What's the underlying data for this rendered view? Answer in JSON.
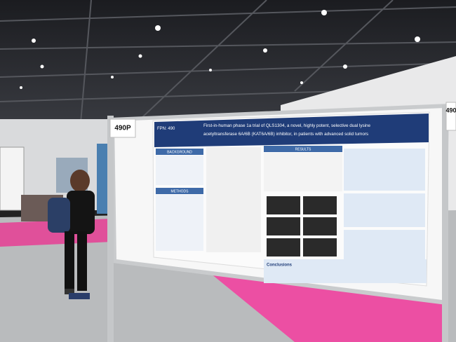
{
  "poster": {
    "board_number": "490P",
    "fpn": "FPN: 490",
    "title_line1": "First-in-human phase 1a trial of QLS1304, a novel, highly potent, selective dual lysine",
    "title_line2": "acetyltransferase 6A/6B (KAT6A/6B) inhibitor, in patients with advanced solid tumors",
    "sections": [
      "BACKGROUND",
      "METHODS",
      "RESULTS",
      "Conclusions"
    ]
  },
  "side_board_number": "490"
}
